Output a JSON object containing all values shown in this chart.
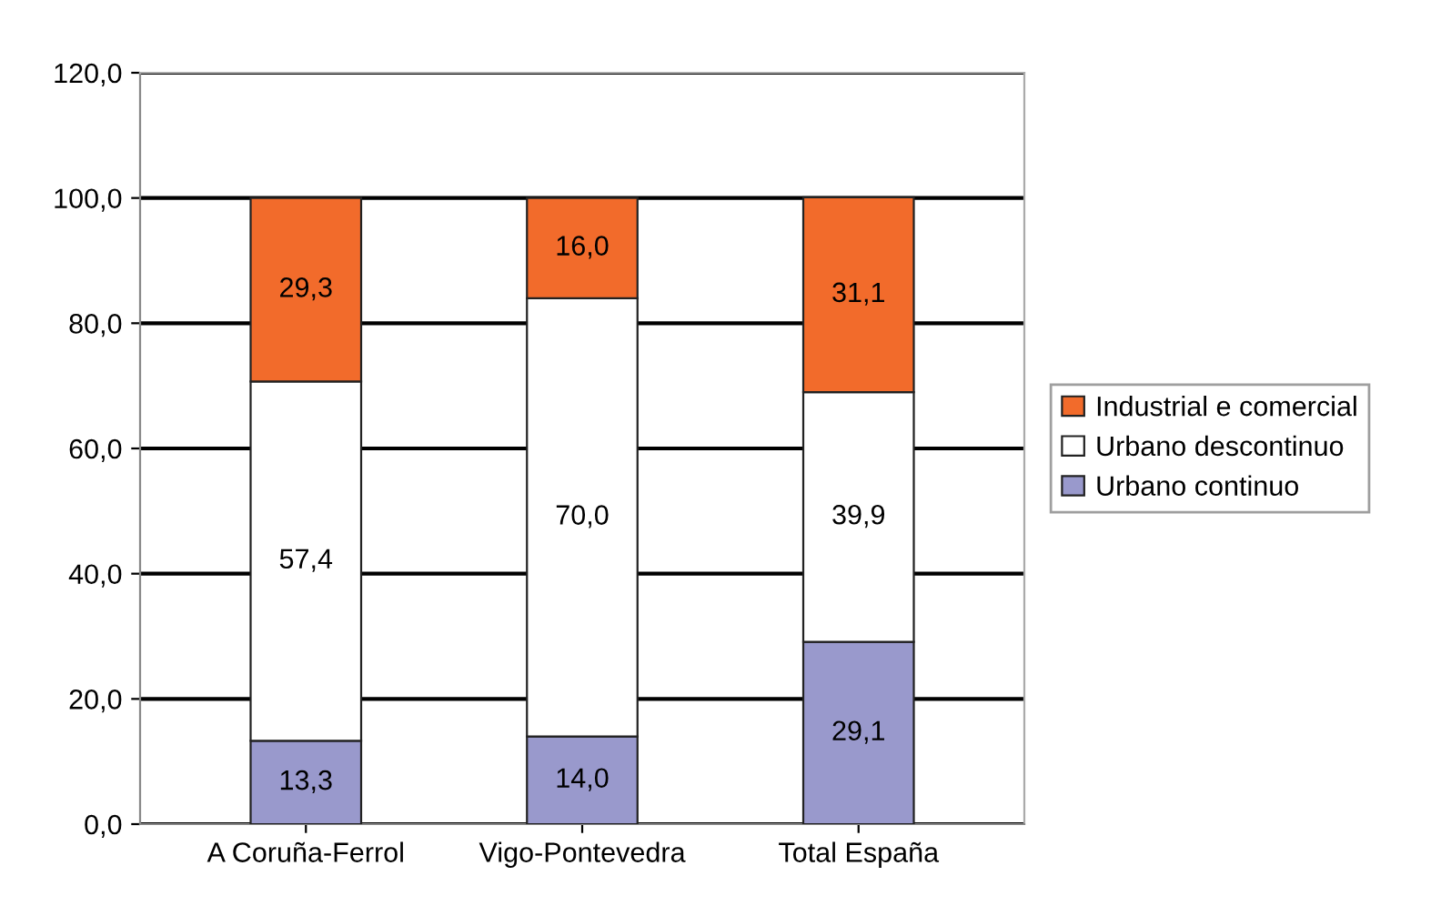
{
  "chart_data": {
    "type": "bar",
    "stacked": true,
    "categories": [
      "A Coruña-Ferrol",
      "Vigo-Pontevedra",
      "Total España"
    ],
    "series": [
      {
        "name": "Urbano continuo",
        "color": "#9999cc",
        "values": [
          13.3,
          14.0,
          29.1
        ],
        "value_labels": [
          "13,3",
          "14,0",
          "29,1"
        ]
      },
      {
        "name": "Urbano descontinuo",
        "color": "#ffffff",
        "values": [
          57.4,
          70.0,
          39.9
        ],
        "value_labels": [
          "57,4",
          "70,0",
          "39,9"
        ]
      },
      {
        "name": "Industrial e comercial",
        "color": "#f26b2b",
        "values": [
          29.3,
          16.0,
          31.1
        ],
        "value_labels": [
          "29,3",
          "16,0",
          "31,1"
        ]
      }
    ],
    "ylim": [
      0,
      120
    ],
    "yticks": [
      {
        "value": 0,
        "label": "0,0"
      },
      {
        "value": 20,
        "label": "20,0"
      },
      {
        "value": 40,
        "label": "40,0"
      },
      {
        "value": 60,
        "label": "60,0"
      },
      {
        "value": 80,
        "label": "80,0"
      },
      {
        "value": 100,
        "label": "100,0"
      },
      {
        "value": 120,
        "label": "120,0"
      }
    ],
    "grid": "y",
    "legend": "right"
  }
}
